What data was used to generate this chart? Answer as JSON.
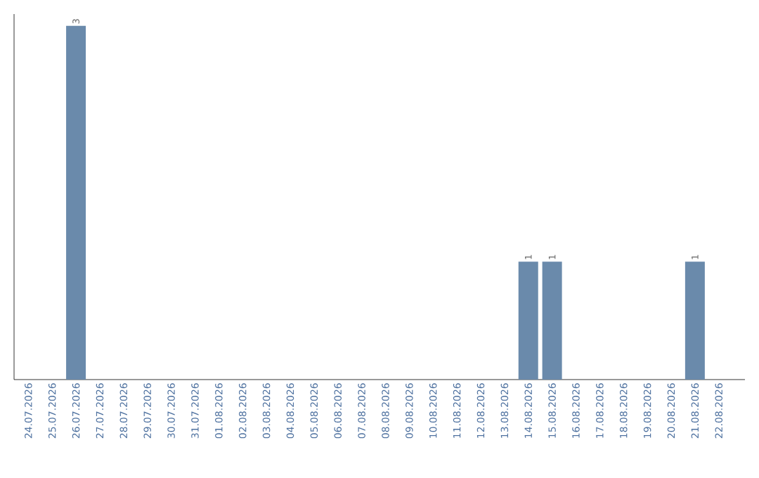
{
  "chart_data": {
    "type": "bar",
    "categories": [
      "24.07.2026",
      "25.07.2026",
      "26.07.2026",
      "27.07.2026",
      "28.07.2026",
      "29.07.2026",
      "30.07.2026",
      "31.07.2026",
      "01.08.2026",
      "02.08.2026",
      "03.08.2026",
      "04.08.2026",
      "05.08.2026",
      "06.08.2026",
      "07.08.2026",
      "08.08.2026",
      "09.08.2026",
      "10.08.2026",
      "11.08.2026",
      "12.08.2026",
      "13.08.2026",
      "14.08.2026",
      "15.08.2026",
      "16.08.2026",
      "17.08.2026",
      "18.08.2026",
      "19.08.2026",
      "20.08.2026",
      "21.08.2026",
      "22.08.2026"
    ],
    "values": [
      0,
      0,
      3,
      0,
      0,
      0,
      0,
      0,
      0,
      0,
      0,
      0,
      0,
      0,
      0,
      0,
      0,
      0,
      0,
      0,
      0,
      1,
      1,
      0,
      0,
      0,
      0,
      0,
      1,
      0
    ],
    "value_labels": [
      null,
      null,
      "3",
      null,
      null,
      null,
      null,
      null,
      null,
      null,
      null,
      null,
      null,
      null,
      null,
      null,
      null,
      null,
      null,
      null,
      null,
      "1",
      "1",
      null,
      null,
      null,
      null,
      null,
      "1",
      null
    ],
    "color": "#6a8aab",
    "ylim": [
      0,
      3.1
    ]
  }
}
